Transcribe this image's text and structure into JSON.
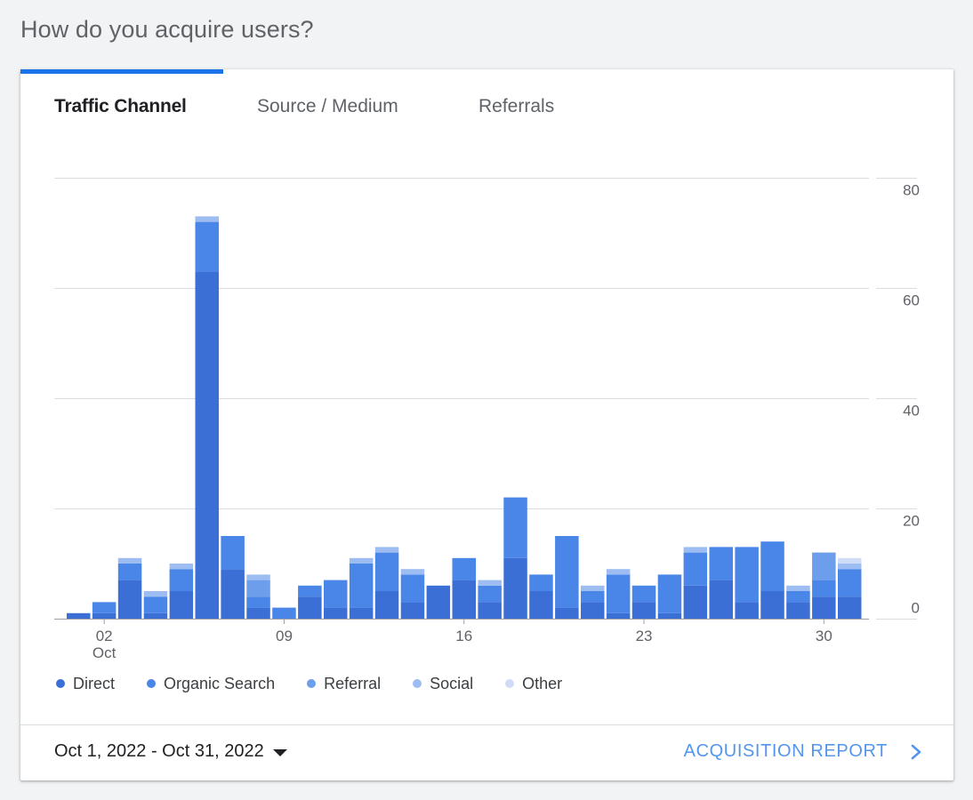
{
  "page": {
    "heading": "How do you acquire users?"
  },
  "tabs": [
    {
      "label": "Traffic Channel",
      "active": true
    },
    {
      "label": "Source / Medium",
      "active": false
    },
    {
      "label": "Referrals",
      "active": false
    }
  ],
  "footer": {
    "date_range": "Oct 1, 2022 - Oct 31, 2022",
    "report_link": "ACQUISITION REPORT"
  },
  "colors": {
    "accent": "#1a73e8",
    "direct": "#3b6fd6",
    "organic_search": "#4a86e8",
    "referral": "#6d9eeb",
    "social": "#9dbdf2",
    "other": "#cfdcf8"
  },
  "chart_data": {
    "type": "bar",
    "stacked": true,
    "x": [
      1,
      2,
      3,
      4,
      5,
      6,
      7,
      8,
      9,
      10,
      11,
      12,
      13,
      14,
      15,
      16,
      17,
      18,
      19,
      20,
      21,
      22,
      23,
      24,
      25,
      26,
      27,
      28,
      29,
      30,
      31
    ],
    "x_tick_labels": [
      {
        "day": 2,
        "label": "02",
        "sublabel": "Oct"
      },
      {
        "day": 9,
        "label": "09"
      },
      {
        "day": 16,
        "label": "16"
      },
      {
        "day": 23,
        "label": "23"
      },
      {
        "day": 30,
        "label": "30"
      }
    ],
    "y_ticks": [
      0,
      20,
      40,
      60,
      80
    ],
    "ylim": [
      0,
      80
    ],
    "y_axis_position": "right",
    "grid": true,
    "legend_position": "bottom",
    "series": [
      {
        "name": "Direct",
        "color": "#3b6fd6",
        "values": [
          1,
          1,
          7,
          1,
          5,
          63,
          9,
          2,
          0,
          4,
          2,
          2,
          5,
          3,
          6,
          7,
          3,
          11,
          5,
          2,
          3,
          1,
          3,
          1,
          6,
          7,
          3,
          5,
          3,
          4,
          4
        ]
      },
      {
        "name": "Organic Search",
        "color": "#4a86e8",
        "values": [
          0,
          2,
          3,
          3,
          4,
          9,
          6,
          2,
          2,
          2,
          5,
          8,
          7,
          5,
          0,
          4,
          3,
          11,
          3,
          13,
          2,
          7,
          3,
          7,
          6,
          6,
          10,
          9,
          2,
          3,
          5
        ]
      },
      {
        "name": "Referral",
        "color": "#6d9eeb",
        "values": [
          0,
          0,
          0,
          0,
          0,
          0,
          0,
          3,
          0,
          0,
          0,
          0,
          0,
          0,
          0,
          0,
          0,
          0,
          0,
          0,
          0,
          0,
          0,
          0,
          0,
          0,
          0,
          0,
          0,
          5,
          0
        ]
      },
      {
        "name": "Social",
        "color": "#9dbdf2",
        "values": [
          0,
          0,
          1,
          1,
          1,
          1,
          0,
          1,
          0,
          0,
          0,
          1,
          1,
          1,
          0,
          0,
          1,
          0,
          0,
          0,
          1,
          1,
          0,
          0,
          1,
          0,
          0,
          0,
          1,
          0,
          1
        ]
      },
      {
        "name": "Other",
        "color": "#cfdcf8",
        "values": [
          0,
          0,
          0,
          0,
          0,
          0,
          0,
          0,
          0,
          0,
          0,
          0,
          0,
          0,
          0,
          0,
          0,
          0,
          0,
          0,
          0,
          0,
          0,
          0,
          0,
          0,
          0,
          0,
          0,
          0,
          1
        ]
      }
    ]
  }
}
